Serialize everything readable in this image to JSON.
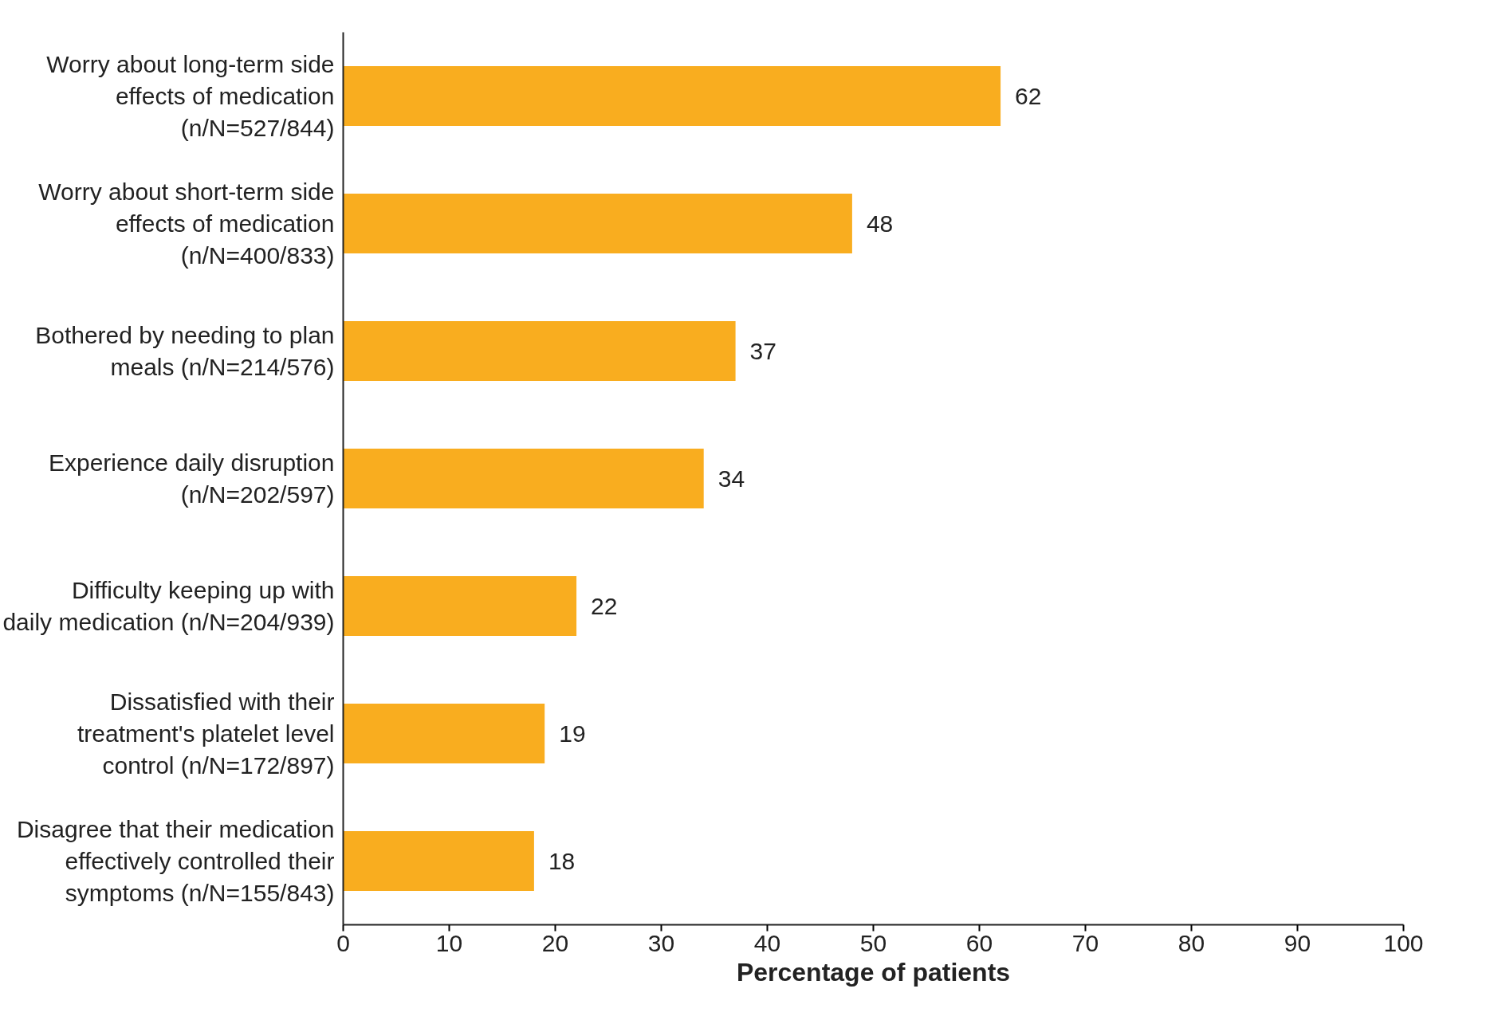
{
  "chart_data": {
    "type": "bar",
    "orientation": "horizontal",
    "xlabel": "Percentage of patients",
    "categories": [
      "Worry about long-term side effects of medication (n/N=527/844)",
      "Worry about short-term side effects of medication (n/N=400/833)",
      "Bothered by needing to plan meals (n/N=214/576)",
      "Experience daily disruption (n/N=202/597)",
      "Difficulty keeping up with daily medication (n/N=204/939)",
      "Dissatisfied with their treatment's platelet level control (n/N=172/897)",
      "Disagree that their medication effectively controlled their symptoms (n/N=155/843)"
    ],
    "values": [
      62,
      48,
      37,
      34,
      22,
      19,
      18
    ],
    "color": "#f9ad1f",
    "xlim": [
      0,
      100
    ],
    "xticks": [
      0,
      10,
      20,
      30,
      40,
      50,
      60,
      70,
      80,
      90,
      100
    ],
    "data_labels": true,
    "grid": false
  }
}
